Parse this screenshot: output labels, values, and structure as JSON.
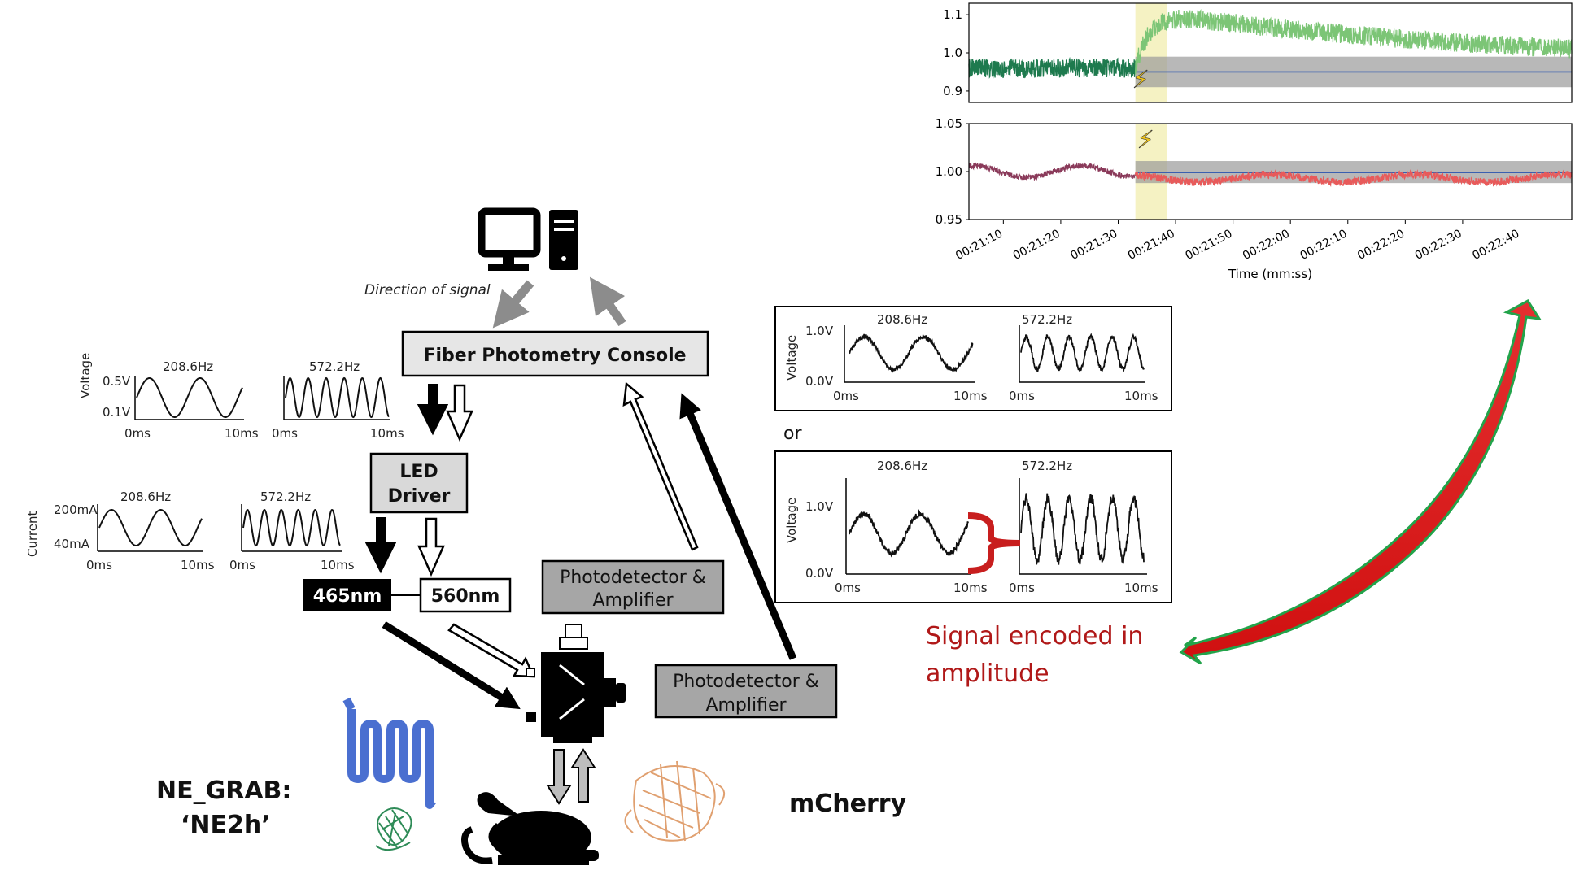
{
  "console": {
    "title": "Fiber Photometry Console",
    "signal_direction": "Direction of signal"
  },
  "led_driver": {
    "line1": "LED",
    "line2": "Driver"
  },
  "leds": {
    "blue": "465nm",
    "green": "560nm"
  },
  "detectors": {
    "top": {
      "line1": "Photodetector &",
      "line2": "Amplifier"
    },
    "right": {
      "line1": "Photodetector &",
      "line2": "Amplifier"
    }
  },
  "sensors": {
    "left_line1": "NE_GRAB:",
    "left_line2": "‘NE2h’",
    "right": "mCherry"
  },
  "waves": {
    "freq1": "208.6Hz",
    "freq2": "572.2Hz",
    "voltage_axis": "Voltage",
    "current_axis": "Current",
    "v_hi": "0.5V",
    "v_lo": "0.1V",
    "i_hi": "200mA",
    "i_lo": "40mA",
    "t0": "0ms",
    "t1": "10ms"
  },
  "recorded": {
    "axis": "Voltage",
    "v_hi": "1.0V",
    "v_lo": "0.0V",
    "t0": "0ms",
    "t1": "10ms",
    "or": "or"
  },
  "annotation": {
    "line1": "Signal encoded in",
    "line2": "amplitude"
  },
  "colors": {
    "green_trace": "#1e7a4e",
    "green_light": "#7cc576",
    "red_trace": "#e85a5a",
    "purple_trace": "#8a3a5a",
    "stim_band": "#f3f0b8",
    "accent_red": "#c81e1e"
  },
  "chart_data": [
    {
      "type": "line",
      "xlabel": "",
      "ylabel": "",
      "ylim": [
        0.87,
        1.13
      ],
      "yticks": [
        "0.9",
        "1.0",
        "1.1"
      ],
      "stimulus_x": "00:21:33",
      "series": [
        {
          "values_approx": "baseline ~0.96 before stimulus, rises to ~1.1 after, decays to ~1.0"
        }
      ]
    },
    {
      "type": "line",
      "xlabel": "Time (mm:ss)",
      "ylabel": "",
      "ylim": [
        0.95,
        1.05
      ],
      "yticks": [
        "0.95",
        "1.00",
        "1.05"
      ],
      "xticks": [
        "00:21:10",
        "00:21:20",
        "00:21:30",
        "00:21:40",
        "00:21:50",
        "00:22:00",
        "00:22:10",
        "00:22:20",
        "00:22:30",
        "00:22:40"
      ],
      "stimulus_x": "00:21:33",
      "series": [
        {
          "values_approx": "baseline ~1.00 before stimulus, dips slightly to ~0.99 after"
        }
      ]
    }
  ]
}
